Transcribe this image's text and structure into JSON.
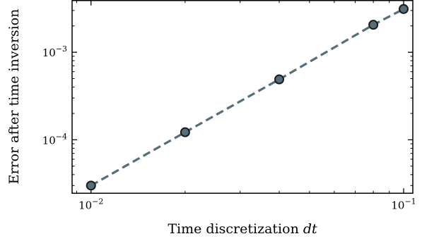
{
  "chart_data": {
    "type": "scatter",
    "xlabel": "Time discretization",
    "xlabel_var": "dt",
    "ylabel": "Error after time inversion",
    "xscale": "log",
    "yscale": "log",
    "xlim": [
      0.0087,
      0.107
    ],
    "ylim": [
      2.45e-05,
      0.0039
    ],
    "x_ticks": [
      {
        "value": 0.01,
        "base": "10",
        "exp": "−2"
      },
      {
        "value": 0.1,
        "base": "10",
        "exp": "−1"
      }
    ],
    "y_ticks": [
      {
        "value": 0.0001,
        "base": "10",
        "exp": "−4"
      },
      {
        "value": 0.001,
        "base": "10",
        "exp": "−3"
      }
    ],
    "series": [
      {
        "x": [
          0.01,
          0.02,
          0.04,
          0.08,
          0.1
        ],
        "y": [
          3e-05,
          0.000122,
          0.00049,
          0.00206,
          0.00312
        ],
        "line_style": "dashed",
        "line_color": "#546e7a",
        "marker_fill": "#546e7a",
        "marker_edge": "#1a1a1a"
      }
    ],
    "grid": false
  }
}
